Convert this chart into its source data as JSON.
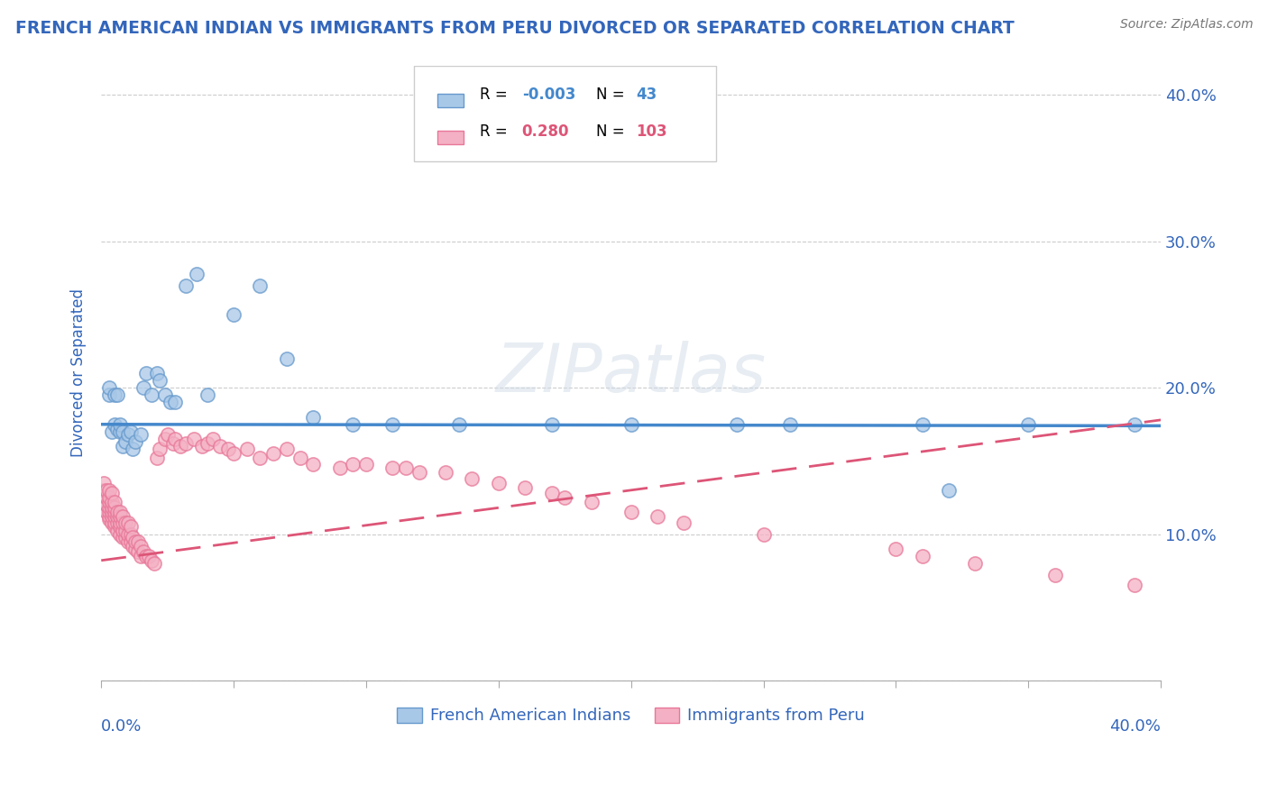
{
  "title": "FRENCH AMERICAN INDIAN VS IMMIGRANTS FROM PERU DIVORCED OR SEPARATED CORRELATION CHART",
  "source": "Source: ZipAtlas.com",
  "ylabel": "Divorced or Separated",
  "legend_entries": [
    {
      "label": "French American Indians",
      "color": "#a8c8e8",
      "edge": "#6699cc",
      "R": "-0.003",
      "N": "43"
    },
    {
      "label": "Immigrants from Peru",
      "color": "#f4a0b8",
      "edge": "#dd6688",
      "R": "0.280",
      "N": "103"
    }
  ],
  "blue_scatter_x": [
    0.003,
    0.003,
    0.004,
    0.005,
    0.005,
    0.006,
    0.006,
    0.007,
    0.007,
    0.008,
    0.008,
    0.009,
    0.01,
    0.011,
    0.012,
    0.013,
    0.015,
    0.016,
    0.017,
    0.019,
    0.021,
    0.022,
    0.024,
    0.026,
    0.028,
    0.032,
    0.036,
    0.04,
    0.05,
    0.06,
    0.07,
    0.08,
    0.095,
    0.11,
    0.135,
    0.17,
    0.2,
    0.24,
    0.26,
    0.31,
    0.32,
    0.35,
    0.39
  ],
  "blue_scatter_y": [
    0.195,
    0.2,
    0.17,
    0.175,
    0.195,
    0.172,
    0.195,
    0.17,
    0.175,
    0.16,
    0.17,
    0.163,
    0.168,
    0.17,
    0.158,
    0.163,
    0.168,
    0.2,
    0.21,
    0.195,
    0.21,
    0.205,
    0.195,
    0.19,
    0.19,
    0.27,
    0.278,
    0.195,
    0.25,
    0.27,
    0.22,
    0.18,
    0.175,
    0.175,
    0.175,
    0.175,
    0.175,
    0.175,
    0.175,
    0.175,
    0.13,
    0.175,
    0.175
  ],
  "pink_scatter_x": [
    0.001,
    0.001,
    0.002,
    0.002,
    0.002,
    0.002,
    0.003,
    0.003,
    0.003,
    0.003,
    0.003,
    0.003,
    0.003,
    0.004,
    0.004,
    0.004,
    0.004,
    0.004,
    0.004,
    0.005,
    0.005,
    0.005,
    0.005,
    0.005,
    0.005,
    0.006,
    0.006,
    0.006,
    0.006,
    0.007,
    0.007,
    0.007,
    0.007,
    0.007,
    0.008,
    0.008,
    0.008,
    0.008,
    0.009,
    0.009,
    0.009,
    0.01,
    0.01,
    0.01,
    0.011,
    0.011,
    0.011,
    0.012,
    0.012,
    0.013,
    0.013,
    0.014,
    0.014,
    0.015,
    0.015,
    0.016,
    0.017,
    0.018,
    0.019,
    0.02,
    0.021,
    0.022,
    0.024,
    0.025,
    0.027,
    0.028,
    0.03,
    0.032,
    0.035,
    0.038,
    0.04,
    0.042,
    0.045,
    0.048,
    0.05,
    0.055,
    0.06,
    0.065,
    0.07,
    0.075,
    0.08,
    0.09,
    0.095,
    0.1,
    0.11,
    0.115,
    0.12,
    0.13,
    0.14,
    0.15,
    0.16,
    0.17,
    0.175,
    0.185,
    0.2,
    0.21,
    0.22,
    0.25,
    0.3,
    0.31,
    0.33,
    0.36,
    0.39
  ],
  "pink_scatter_y": [
    0.13,
    0.135,
    0.115,
    0.12,
    0.125,
    0.13,
    0.11,
    0.112,
    0.115,
    0.118,
    0.122,
    0.125,
    0.13,
    0.108,
    0.112,
    0.115,
    0.118,
    0.122,
    0.128,
    0.105,
    0.108,
    0.112,
    0.115,
    0.118,
    0.122,
    0.102,
    0.108,
    0.112,
    0.115,
    0.1,
    0.105,
    0.108,
    0.112,
    0.115,
    0.098,
    0.102,
    0.108,
    0.112,
    0.098,
    0.102,
    0.108,
    0.095,
    0.1,
    0.108,
    0.095,
    0.1,
    0.105,
    0.092,
    0.098,
    0.09,
    0.095,
    0.088,
    0.095,
    0.085,
    0.092,
    0.088,
    0.085,
    0.085,
    0.082,
    0.08,
    0.152,
    0.158,
    0.165,
    0.168,
    0.162,
    0.165,
    0.16,
    0.162,
    0.165,
    0.16,
    0.162,
    0.165,
    0.16,
    0.158,
    0.155,
    0.158,
    0.152,
    0.155,
    0.158,
    0.152,
    0.148,
    0.145,
    0.148,
    0.148,
    0.145,
    0.145,
    0.142,
    0.142,
    0.138,
    0.135,
    0.132,
    0.128,
    0.125,
    0.122,
    0.115,
    0.112,
    0.108,
    0.1,
    0.09,
    0.085,
    0.08,
    0.072,
    0.065
  ],
  "blue_line_x": [
    0.0,
    0.4
  ],
  "blue_line_y": [
    0.175,
    0.174
  ],
  "pink_line_x": [
    0.0,
    0.4
  ],
  "pink_line_y": [
    0.082,
    0.178
  ],
  "xmin": 0.0,
  "xmax": 0.4,
  "ymin": 0.0,
  "ymax": 0.42,
  "watermark": "ZIPatlas",
  "title_color": "#3366bb",
  "source_color": "#777777",
  "axis_label_color": "#3366bb",
  "tick_color": "#3366bb",
  "grid_color": "#cccccc",
  "blue_dot_facecolor": "#a8c8e8",
  "blue_dot_edgecolor": "#6699cc",
  "pink_dot_facecolor": "#f4b0c4",
  "pink_dot_edgecolor": "#e87799",
  "blue_line_color": "#4488cc",
  "pink_line_color": "#dd5577"
}
